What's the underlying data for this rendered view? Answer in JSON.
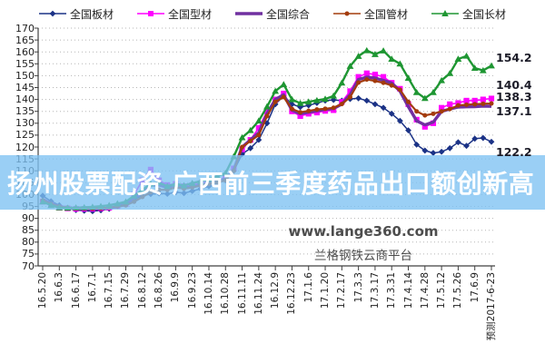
{
  "overlay_banner": {
    "text": "扬州股票配资 广西前三季度药品出口额创新高",
    "bg_color": "#7EC1F2",
    "bg_opacity": 0.78,
    "text_color": "#FFFFFF"
  },
  "watermark": {
    "line1": "www.lange360.com",
    "line2": "兰格钢铁云商平台",
    "color": "#4D4D4D"
  },
  "colors": {
    "grid": "#B5B5B5",
    "axis": "#404040",
    "tick_label": "#1F1F1F",
    "end_label": "#1C1C28"
  },
  "chart_data": {
    "type": "line",
    "title": "",
    "xlabel": "",
    "ylabel": "",
    "ylim": [
      70,
      170
    ],
    "y_tick_step": 5,
    "grid": "horizontal-dotted",
    "legend_position": "top",
    "x_labels": [
      "16.5.20",
      "16.6.3",
      "16.6.17",
      "16.7.1",
      "16.7.15",
      "16.7.29",
      "16.8.12",
      "16.8.26",
      "16.9.9",
      "16.9.23",
      "16.10.14",
      "16.10.28",
      "16.11.11",
      "16.11.24",
      "16.12.9",
      "16.12.23",
      "17.1.6",
      "17.1.20",
      "17.2.17",
      "17.3.3",
      "17.3.17",
      "17.3.31",
      "17.4.14",
      "17.4.28",
      "17.5.12",
      "17.5.26",
      "17.6.9",
      "预测2017-6-23"
    ],
    "points_per_label_interval": 2,
    "series": [
      {
        "name": "全国板材",
        "color": "#1B3286",
        "marker": "diamond",
        "end_label": "122.2",
        "values": [
          99.5,
          97.2,
          95.5,
          94.3,
          93.5,
          93.2,
          93,
          93.4,
          94,
          95.2,
          96.5,
          98,
          99.5,
          100.2,
          100.5,
          100.3,
          101,
          100.6,
          101.5,
          102.4,
          103.5,
          104.6,
          106,
          110,
          117,
          119.5,
          123,
          130,
          138,
          141.5,
          138,
          136.8,
          137.5,
          138.5,
          139.5,
          139.8,
          139.5,
          140.2,
          140.5,
          139.5,
          138,
          136.5,
          134,
          131,
          127,
          121,
          118.5,
          117.5,
          118,
          119.5,
          122,
          120.5,
          123.5,
          123.8,
          122.2
        ]
      },
      {
        "name": "全国型材",
        "color": "#FF00FF",
        "marker": "square",
        "end_label": "140.4",
        "values": [
          97,
          95.6,
          94.5,
          94.2,
          94,
          94,
          94,
          94.2,
          94.5,
          95.2,
          96,
          100,
          106,
          110.5,
          106,
          104,
          104.5,
          103.5,
          104,
          104.8,
          105.5,
          106.2,
          107,
          111,
          119,
          123,
          128,
          135,
          140,
          142.5,
          135,
          133,
          134,
          134.5,
          135.2,
          135.5,
          139,
          143.5,
          149.5,
          151,
          150.5,
          149.5,
          147,
          144.5,
          138,
          131.5,
          128.5,
          130,
          136.5,
          138,
          138.5,
          139.5,
          139.5,
          140,
          140.4
        ]
      },
      {
        "name": "全国综合",
        "color": "#7030A0",
        "marker": "none",
        "end_label": "137.1",
        "values": [
          98,
          96.2,
          95,
          94.4,
          94,
          93.9,
          93.8,
          94,
          94.3,
          95,
          95.8,
          98.5,
          101,
          104,
          104,
          103,
          103.5,
          102.8,
          103.2,
          104,
          104.8,
          105.6,
          106.5,
          110.5,
          120,
          123,
          126,
          134,
          140,
          142,
          135.5,
          134,
          134.6,
          135.2,
          135.8,
          136.2,
          138,
          142,
          148.4,
          149.4,
          149,
          148,
          146.9,
          143.5,
          137,
          131,
          129.3,
          130.5,
          135,
          136,
          136.8,
          136.9,
          137,
          137.2,
          137.1
        ]
      },
      {
        "name": "全国管材",
        "color": "#A33B0B",
        "marker": "circle",
        "end_label": "138.3",
        "values": [
          97.5,
          96,
          95,
          94.5,
          94.2,
          94.2,
          94.2,
          94.3,
          94.5,
          95,
          95.5,
          97,
          99,
          101,
          102,
          102,
          103,
          102.5,
          103,
          103.8,
          104.5,
          105.2,
          106,
          110,
          120,
          122.5,
          125,
          133,
          139,
          141,
          136,
          134.6,
          135.2,
          135.8,
          136.1,
          136.5,
          138.1,
          141,
          147.1,
          148.4,
          147.8,
          147,
          145.9,
          144.1,
          139,
          135,
          133.3,
          134,
          135,
          136,
          137.5,
          137.8,
          138,
          138.2,
          138.3
        ]
      },
      {
        "name": "全国长材",
        "color": "#1E9632",
        "marker": "triangle",
        "end_label": "154.2",
        "values": [
          97,
          95.5,
          94.5,
          94.4,
          94.5,
          94.6,
          94.8,
          95.1,
          95.5,
          96.2,
          97,
          99.5,
          102,
          104.5,
          105,
          103.5,
          104.5,
          103.8,
          104.8,
          105.6,
          106.5,
          107.8,
          109,
          116,
          124,
          127,
          131,
          137,
          143.5,
          146.3,
          140,
          138.4,
          139,
          139.6,
          140.2,
          141.5,
          147,
          154,
          158.2,
          160.6,
          159,
          160.5,
          157,
          155,
          149,
          143,
          140.5,
          143,
          148,
          151,
          157,
          158.3,
          153.2,
          152.2,
          154.2
        ]
      }
    ]
  }
}
